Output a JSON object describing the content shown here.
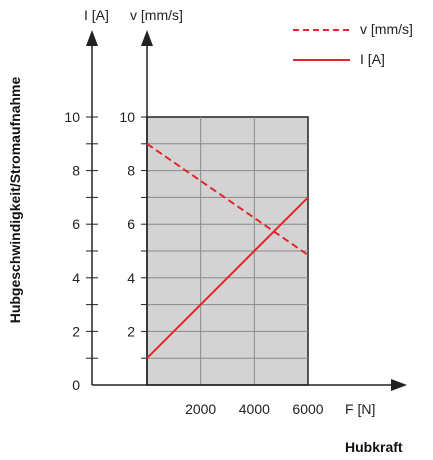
{
  "chart_data": {
    "type": "line",
    "ylabel": "Hubgeschwindigkeit/Stromaufnahme",
    "xlabel": "Hubkraft",
    "x_axis_symbol": "F [N]",
    "left_axis_symbol": "I [A]",
    "right_axis_symbol": "v [mm/s]",
    "x_ticks": [
      2000,
      4000,
      6000
    ],
    "xlim": [
      0,
      6000
    ],
    "left_ticks": [
      0,
      2,
      4,
      6,
      8,
      10
    ],
    "right_ticks": [
      2,
      4,
      6,
      8,
      10
    ],
    "ylim": [
      0,
      10
    ],
    "grid": true,
    "legend_position": "top-right",
    "series": [
      {
        "name": "v [mm/s]",
        "style": "dashed",
        "color": "#e3262d",
        "x": [
          0,
          6000
        ],
        "y": [
          9,
          4.85
        ]
      },
      {
        "name": "I [A]",
        "style": "solid",
        "color": "#e3262d",
        "x": [
          0,
          6000
        ],
        "y": [
          1,
          7
        ]
      }
    ]
  }
}
